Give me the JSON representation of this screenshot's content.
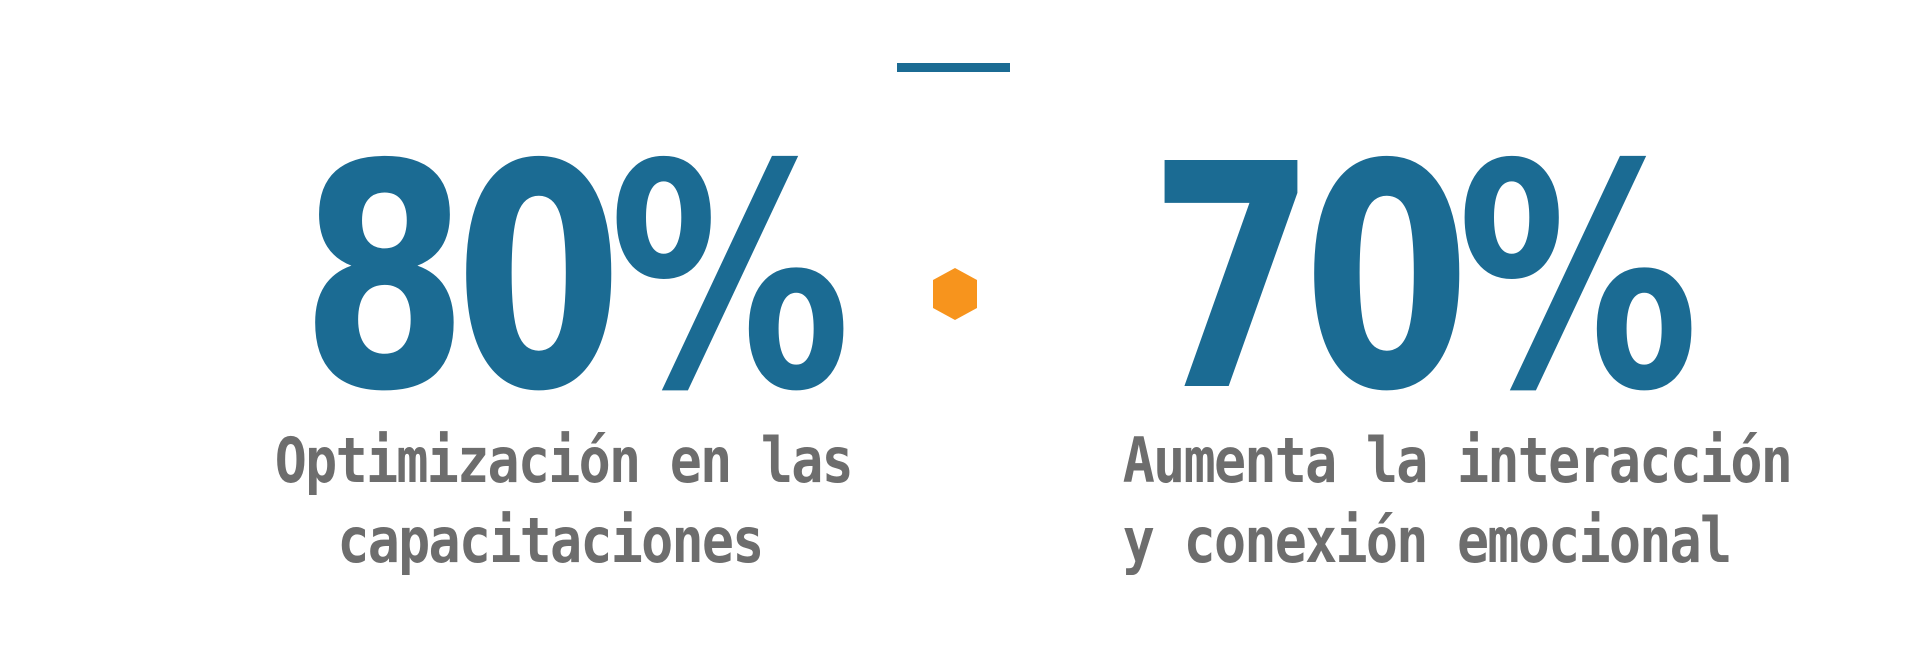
{
  "colors": {
    "primary": "#1b6b93",
    "caption": "#6d6d6d",
    "accent": "#f7941d",
    "background": "#ffffff"
  },
  "stats": [
    {
      "value": "80%",
      "caption_line1": "Optimización en las",
      "caption_line2": "capacitaciones"
    },
    {
      "value": "70%",
      "caption_line1": "Aumenta la interacción",
      "caption_line2": "y conexión emocional"
    }
  ],
  "separator_icon": "hexagon-icon"
}
